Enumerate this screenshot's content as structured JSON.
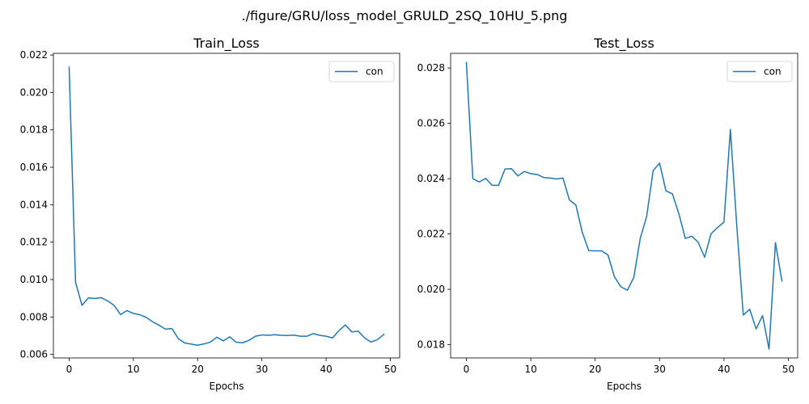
{
  "figure": {
    "suptitle": "./figure/GRU/loss_model_GRULD_2SQ_10HU_5.png"
  },
  "colors": {
    "series": "#1f77b4",
    "legend_border": "#cccccc"
  },
  "chart_data": [
    {
      "type": "line",
      "title": "Train_Loss",
      "xlabel": "Epochs",
      "ylabel": "",
      "xlim": [
        -2.45,
        51.45
      ],
      "ylim": [
        0.00581,
        0.02209
      ],
      "xticks": [
        0,
        10,
        20,
        30,
        40,
        50
      ],
      "xtick_labels": [
        "0",
        "10",
        "20",
        "30",
        "40",
        "50"
      ],
      "yticks": [
        0.006,
        0.008,
        0.01,
        0.012,
        0.014,
        0.016,
        0.018,
        0.02,
        0.022
      ],
      "ytick_labels": [
        "0.006",
        "0.008",
        "0.010",
        "0.012",
        "0.014",
        "0.016",
        "0.018",
        "0.020",
        "0.022"
      ],
      "grid": false,
      "legend": "top-right",
      "series": [
        {
          "name": "con",
          "x": [
            0,
            1,
            2,
            3,
            4,
            5,
            6,
            7,
            8,
            9,
            10,
            11,
            12,
            13,
            14,
            15,
            16,
            17,
            18,
            19,
            20,
            21,
            22,
            23,
            24,
            25,
            26,
            27,
            28,
            29,
            30,
            31,
            32,
            33,
            34,
            35,
            36,
            37,
            38,
            39,
            40,
            41,
            42,
            43,
            44,
            45,
            46,
            47,
            48,
            49
          ],
          "values": [
            0.02135,
            0.00985,
            0.00862,
            0.00902,
            0.00899,
            0.00903,
            0.00886,
            0.00862,
            0.00813,
            0.00834,
            0.00819,
            0.00812,
            0.00798,
            0.00774,
            0.00756,
            0.00735,
            0.00738,
            0.00684,
            0.00661,
            0.00655,
            0.00649,
            0.00656,
            0.00666,
            0.00692,
            0.00672,
            0.00694,
            0.00665,
            0.00662,
            0.00675,
            0.00697,
            0.00704,
            0.00702,
            0.00705,
            0.00702,
            0.00701,
            0.00703,
            0.00697,
            0.00697,
            0.00711,
            0.00702,
            0.00697,
            0.00688,
            0.00727,
            0.00757,
            0.0072,
            0.00724,
            0.00688,
            0.00666,
            0.00679,
            0.00707
          ]
        }
      ]
    },
    {
      "type": "line",
      "title": "Test_Loss",
      "xlabel": "Epochs",
      "ylabel": "",
      "xlim": [
        -2.45,
        51.45
      ],
      "ylim": [
        0.01752,
        0.02853
      ],
      "xticks": [
        0,
        10,
        20,
        30,
        40,
        50
      ],
      "xtick_labels": [
        "0",
        "10",
        "20",
        "30",
        "40",
        "50"
      ],
      "yticks": [
        0.018,
        0.02,
        0.022,
        0.024,
        0.026,
        0.028
      ],
      "ytick_labels": [
        "0.018",
        "0.020",
        "0.022",
        "0.024",
        "0.026",
        "0.028"
      ],
      "grid": false,
      "legend": "top-right",
      "series": [
        {
          "name": "con",
          "x": [
            0,
            1,
            2,
            3,
            4,
            5,
            6,
            7,
            8,
            9,
            10,
            11,
            12,
            13,
            14,
            15,
            16,
            17,
            18,
            19,
            20,
            21,
            22,
            23,
            24,
            25,
            26,
            27,
            28,
            29,
            30,
            31,
            32,
            33,
            34,
            35,
            36,
            37,
            38,
            39,
            40,
            41,
            42,
            43,
            44,
            45,
            46,
            47,
            48,
            49
          ],
          "values": [
            0.0282,
            0.024,
            0.02388,
            0.02401,
            0.02376,
            0.02376,
            0.02435,
            0.02436,
            0.0241,
            0.02426,
            0.02418,
            0.02415,
            0.02404,
            0.02402,
            0.02399,
            0.02402,
            0.02323,
            0.02305,
            0.02206,
            0.0214,
            0.02139,
            0.02139,
            0.02124,
            0.02045,
            0.02009,
            0.01997,
            0.02043,
            0.02184,
            0.02264,
            0.02429,
            0.02456,
            0.02356,
            0.02345,
            0.02273,
            0.02184,
            0.02192,
            0.0217,
            0.02116,
            0.02201,
            0.02223,
            0.02243,
            0.02578,
            0.02227,
            0.01907,
            0.01928,
            0.01857,
            0.01905,
            0.01784,
            0.02169,
            0.0203
          ]
        }
      ]
    }
  ]
}
